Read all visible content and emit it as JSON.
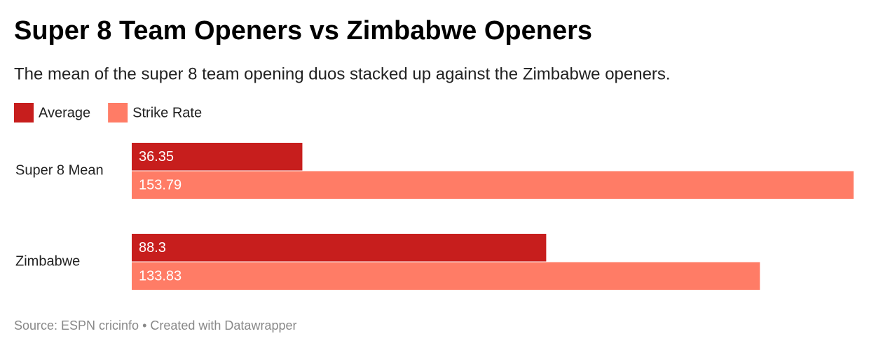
{
  "chart_data": {
    "type": "grouped-bar",
    "title": "Super 8 Team Openers vs Zimbabwe Openers",
    "subtitle": "The mean of the super 8 team opening duos stacked up against the Zimbabwe openers.",
    "categories": [
      "Super 8 Mean",
      "Zimbabwe"
    ],
    "series": [
      {
        "name": "Average",
        "color": "#c71e1d",
        "values": [
          36.35,
          88.3
        ]
      },
      {
        "name": "Strike Rate",
        "color": "#ff7c66",
        "values": [
          153.79,
          133.83
        ]
      }
    ],
    "source": "Source: ESPN cricinfo • Created with Datawrapper"
  }
}
